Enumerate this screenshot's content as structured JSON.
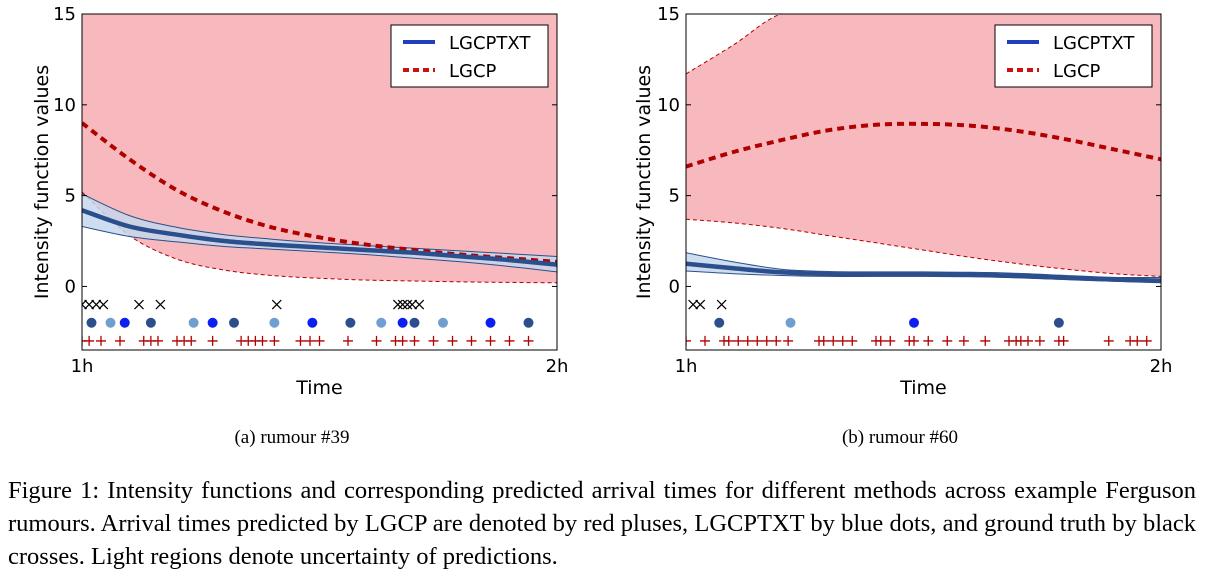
{
  "caption": "Figure 1: Intensity functions and corresponding predicted arrival times for different methods across example Ferguson rumours. Arrival times predicted by LGCP are denoted by red pluses, LGCPTXT by blue dots, and ground truth by black crosses. Light regions denote uncertainty of predictions.",
  "colors": {
    "lgcptxt": "#2b4f8c",
    "lgcptxt_band": "#c5d7ec",
    "lgcp": "#b00000",
    "lgcp_band": "#f7b9bd",
    "legend_blue": "#1f3fbf",
    "legend_red": "#cc1111",
    "dot_dark": "#2b4f8c",
    "dot_light": "#6f9fd0",
    "dot_bright": "#0a1ff0",
    "cross": "#000000"
  },
  "chart_data": [
    {
      "type": "line",
      "subcaption": "(a) rumour #39",
      "xlabel": "Time",
      "ylabel": "Intensity function values",
      "xticks": [
        "1h",
        "2h"
      ],
      "yticks": [
        "0",
        "5",
        "10",
        "15"
      ],
      "xlim": [
        1,
        2
      ],
      "ylim": [
        -3.5,
        15
      ],
      "legend": {
        "position": "top-right",
        "entries": [
          "LGCPTXT",
          "LGCP"
        ]
      },
      "series": [
        {
          "name": "LGCPTXT",
          "x": [
            1.0,
            1.1,
            1.2,
            1.3,
            1.4,
            1.5,
            1.6,
            1.7,
            1.8,
            1.9,
            2.0
          ],
          "values": [
            4.2,
            3.3,
            2.85,
            2.5,
            2.3,
            2.15,
            2.0,
            1.85,
            1.65,
            1.45,
            1.2
          ],
          "lower": [
            3.3,
            2.75,
            2.45,
            2.2,
            2.05,
            1.9,
            1.75,
            1.55,
            1.35,
            1.1,
            0.8
          ],
          "upper": [
            5.1,
            3.9,
            3.25,
            2.85,
            2.6,
            2.4,
            2.25,
            2.1,
            1.95,
            1.8,
            1.65
          ]
        },
        {
          "name": "LGCP",
          "x": [
            1.0,
            1.1,
            1.2,
            1.3,
            1.4,
            1.5,
            1.6,
            1.7,
            1.8,
            1.9,
            2.0
          ],
          "values": [
            9.0,
            7.0,
            5.3,
            4.1,
            3.25,
            2.7,
            2.3,
            2.0,
            1.75,
            1.55,
            1.35
          ],
          "lower": [
            5.2,
            2.8,
            1.5,
            0.9,
            0.6,
            0.45,
            0.35,
            0.3,
            0.25,
            0.22,
            0.2
          ],
          "upper": [
            15,
            15,
            15,
            15,
            15,
            15,
            15,
            15,
            15,
            15,
            15
          ]
        }
      ],
      "ground_truth_crosses": [
        1.0,
        1.015,
        1.03,
        1.045,
        1.12,
        1.165,
        1.41,
        1.665,
        1.675,
        1.685,
        1.695,
        1.71
      ],
      "lgcptxt_dots": [
        {
          "x": 1.02,
          "shade": "dark"
        },
        {
          "x": 1.06,
          "shade": "light"
        },
        {
          "x": 1.09,
          "shade": "bright"
        },
        {
          "x": 1.145,
          "shade": "dark"
        },
        {
          "x": 1.235,
          "shade": "light"
        },
        {
          "x": 1.275,
          "shade": "bright"
        },
        {
          "x": 1.32,
          "shade": "dark"
        },
        {
          "x": 1.405,
          "shade": "light"
        },
        {
          "x": 1.485,
          "shade": "bright"
        },
        {
          "x": 1.565,
          "shade": "dark"
        },
        {
          "x": 1.63,
          "shade": "light"
        },
        {
          "x": 1.675,
          "shade": "bright"
        },
        {
          "x": 1.7,
          "shade": "dark"
        },
        {
          "x": 1.76,
          "shade": "light"
        },
        {
          "x": 1.86,
          "shade": "bright"
        },
        {
          "x": 1.94,
          "shade": "dark"
        }
      ],
      "lgcp_pluses": [
        1.0,
        1.015,
        1.04,
        1.08,
        1.13,
        1.145,
        1.16,
        1.2,
        1.215,
        1.23,
        1.275,
        1.335,
        1.35,
        1.365,
        1.38,
        1.405,
        1.46,
        1.48,
        1.5,
        1.56,
        1.62,
        1.66,
        1.675,
        1.7,
        1.74,
        1.78,
        1.82,
        1.86,
        1.9,
        1.94
      ]
    },
    {
      "type": "line",
      "subcaption": "(b)  rumour #60",
      "xlabel": "Time",
      "ylabel": "Intensity function values",
      "xticks": [
        "1h",
        "2h"
      ],
      "yticks": [
        "0",
        "5",
        "10",
        "15"
      ],
      "xlim": [
        1,
        2
      ],
      "ylim": [
        -3.5,
        15
      ],
      "legend": {
        "position": "top-right",
        "entries": [
          "LGCPTXT",
          "LGCP"
        ]
      },
      "series": [
        {
          "name": "LGCPTXT",
          "x": [
            1.0,
            1.1,
            1.2,
            1.3,
            1.4,
            1.5,
            1.6,
            1.7,
            1.8,
            1.9,
            2.0
          ],
          "values": [
            1.25,
            1.0,
            0.78,
            0.68,
            0.66,
            0.66,
            0.64,
            0.58,
            0.47,
            0.38,
            0.32
          ],
          "lower": [
            0.85,
            0.7,
            0.6,
            0.55,
            0.55,
            0.55,
            0.53,
            0.47,
            0.38,
            0.28,
            0.2
          ],
          "upper": [
            1.85,
            1.35,
            0.95,
            0.82,
            0.8,
            0.8,
            0.78,
            0.72,
            0.6,
            0.5,
            0.5
          ]
        },
        {
          "name": "LGCP",
          "x": [
            1.0,
            1.1,
            1.2,
            1.3,
            1.4,
            1.5,
            1.6,
            1.7,
            1.8,
            1.9,
            2.0
          ],
          "values": [
            6.6,
            7.4,
            8.05,
            8.6,
            8.9,
            8.95,
            8.85,
            8.55,
            8.1,
            7.55,
            7.0
          ],
          "lower": [
            3.7,
            3.5,
            3.2,
            2.8,
            2.4,
            2.0,
            1.6,
            1.25,
            0.95,
            0.7,
            0.55
          ],
          "upper": [
            11.7,
            13.3,
            15,
            15,
            15,
            15,
            15,
            15,
            15,
            15,
            15
          ]
        }
      ],
      "ground_truth_crosses": [
        1.015,
        1.03,
        1.075
      ],
      "lgcptxt_dots": [
        {
          "x": 1.07,
          "shade": "dark"
        },
        {
          "x": 1.22,
          "shade": "light"
        },
        {
          "x": 1.48,
          "shade": "bright"
        },
        {
          "x": 1.785,
          "shade": "dark"
        }
      ],
      "lgcp_pluses": [
        1.0,
        1.04,
        1.08,
        1.09,
        1.11,
        1.13,
        1.15,
        1.17,
        1.19,
        1.215,
        1.28,
        1.29,
        1.31,
        1.33,
        1.35,
        1.4,
        1.41,
        1.43,
        1.47,
        1.48,
        1.51,
        1.55,
        1.585,
        1.63,
        1.68,
        1.695,
        1.705,
        1.72,
        1.745,
        1.785,
        1.795,
        1.89,
        1.935,
        1.95,
        1.97
      ]
    }
  ]
}
